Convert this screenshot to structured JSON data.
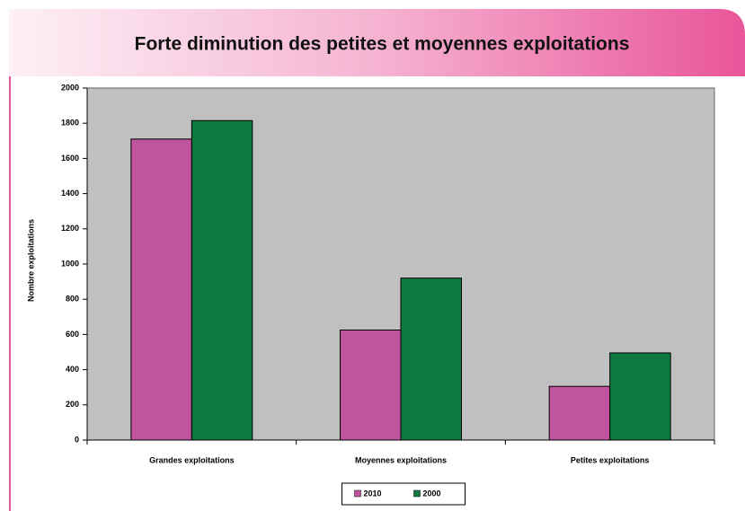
{
  "chart_data": {
    "type": "bar",
    "title": "Forte diminution des petites et moyennes exploitations",
    "y_label": "Nombre exploitations",
    "categories": [
      "Grandes exploitations",
      "Moyennes exploitations",
      "Petites exploitations"
    ],
    "series": [
      {
        "name": "2010",
        "color": "#bf559f",
        "values": [
          1710,
          625,
          305
        ]
      },
      {
        "name": "2000",
        "color": "#0f7a40",
        "values": [
          1815,
          920,
          495
        ]
      }
    ],
    "ylim": [
      0,
      2000
    ],
    "yticks": [
      0,
      200,
      400,
      600,
      800,
      1000,
      1200,
      1400,
      1600,
      1800,
      2000
    ],
    "legend": "bottom",
    "grid": false,
    "plot_background": "#c0c0c0"
  }
}
